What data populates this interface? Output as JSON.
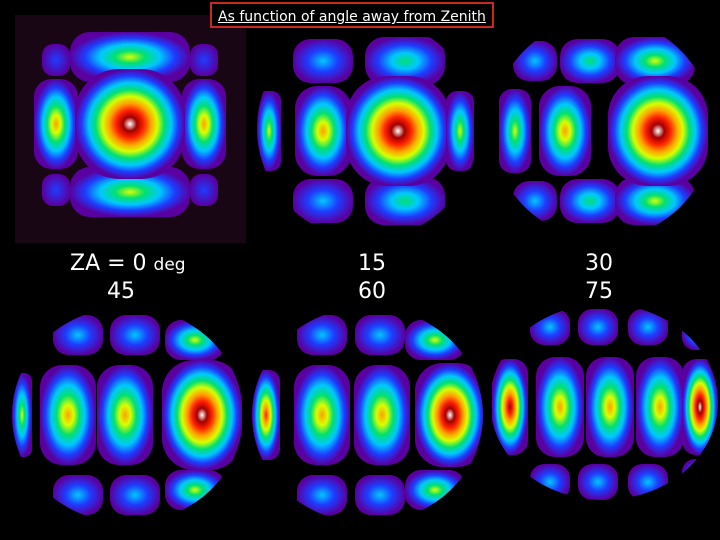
{
  "title": "As function of angle away from Zenith",
  "labels": {
    "col1_prefix": "ZA = 0",
    "col1_unit": "deg",
    "col1_row2": "45",
    "col2_row1": "15",
    "col2_row2": "60",
    "col3_row1": "30",
    "col3_row2": "75"
  },
  "panels": [
    {
      "za_deg": 0
    },
    {
      "za_deg": 15
    },
    {
      "za_deg": 30
    },
    {
      "za_deg": 45
    },
    {
      "za_deg": 60
    },
    {
      "za_deg": 75
    }
  ],
  "colormap": [
    "#5a00a0",
    "#1e3cff",
    "#00c8ff",
    "#00e070",
    "#d8ff00",
    "#ffa000",
    "#ff2000",
    "#a00000",
    "#ffffff"
  ]
}
